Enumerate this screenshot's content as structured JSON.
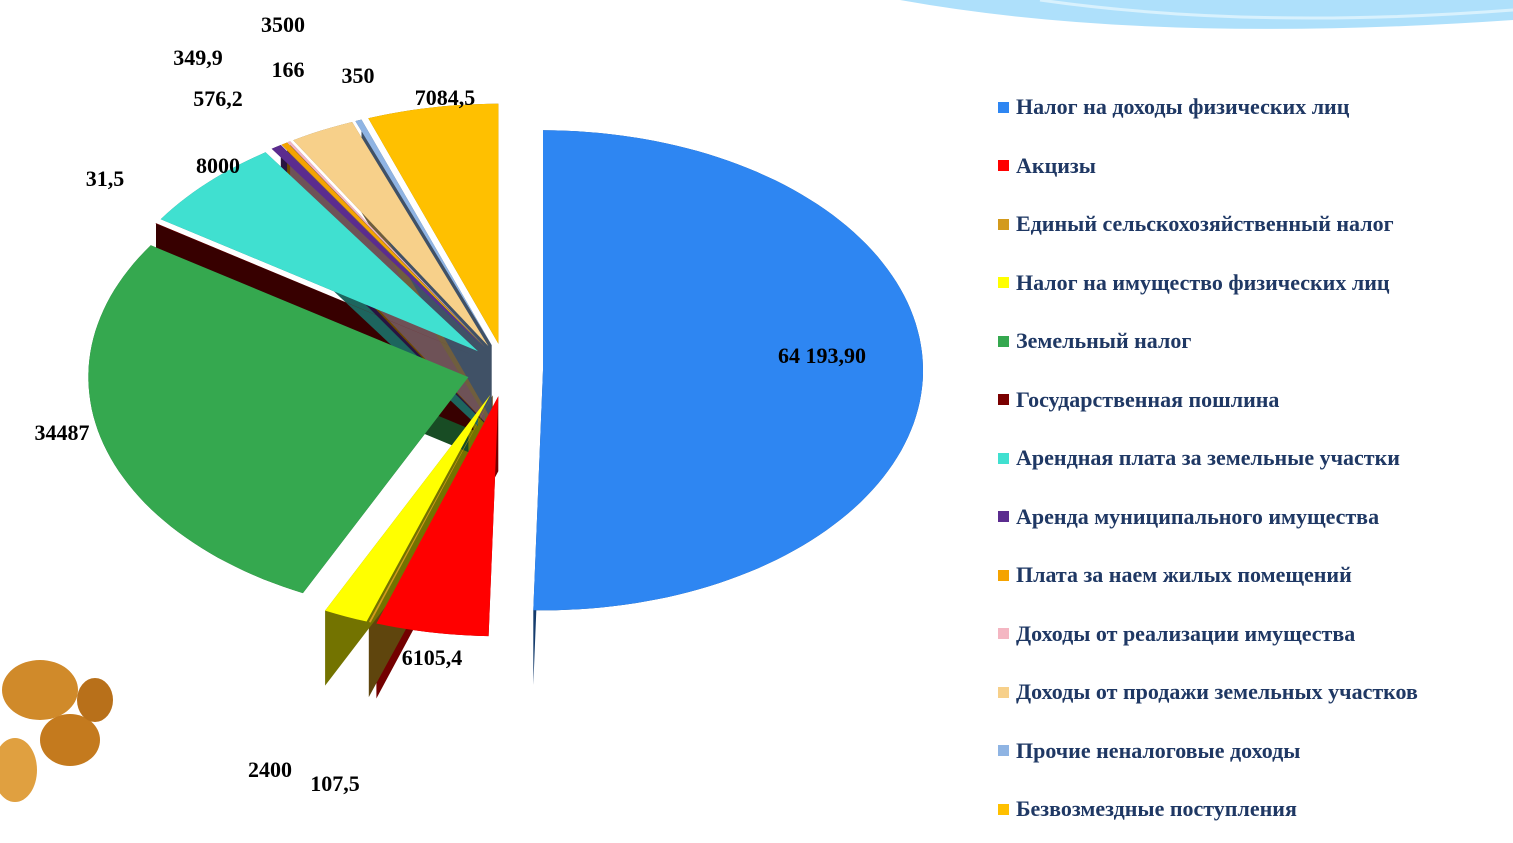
{
  "chart_data": {
    "type": "pie",
    "categories": [
      "Налог на доходы физических лиц",
      "Акцизы",
      "Единый сельскохозяйственный налог",
      "Налог на имущество физических лиц",
      "Земельный налог",
      "Государственная пошлина",
      "Арендная плата за земельные участки",
      "Аренда муниципального имущества",
      "Плата за наем жилых помещений",
      "Доходы от реализации имущества",
      "Доходы от продажи земельных участков",
      "Прочие неналоговые доходы",
      "Безвозмездные  поступления"
    ],
    "values": [
      64193.9,
      6105.4,
      107.5,
      2400,
      34487,
      31.5,
      8000,
      576.2,
      349.9,
      166,
      3500,
      350,
      7084.5
    ],
    "value_labels": [
      "64 193,90",
      "6105,4",
      "107,5",
      "2400",
      "34487",
      "31,5",
      "8000",
      "576,2",
      "349,9",
      "166",
      "3500",
      "350",
      "7084,5"
    ],
    "colors": [
      "#2e86f2",
      "#ff0000",
      "#d39a1c",
      "#ffff00",
      "#35a84f",
      "#7a0000",
      "#40e0d0",
      "#5b2c8f",
      "#f5a300",
      "#f4b6c2",
      "#f7d08a",
      "#8fb4e3",
      "#ffc000"
    ],
    "legend": "right"
  }
}
